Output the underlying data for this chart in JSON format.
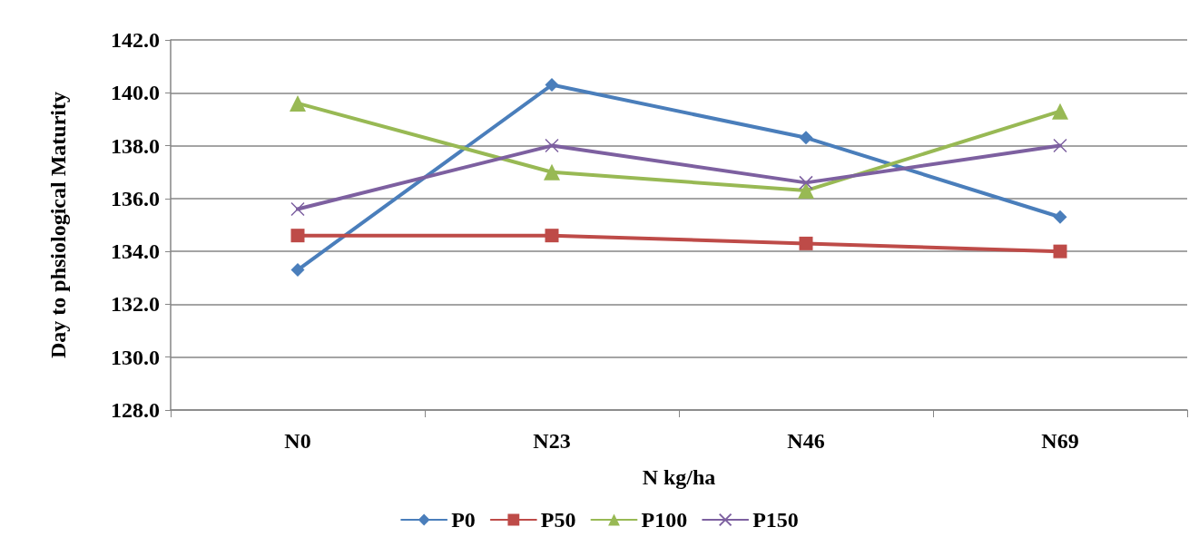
{
  "chart_data": {
    "type": "line",
    "xlabel": "N kg/ha",
    "ylabel": "Day to phsiological Maturity",
    "categories": [
      "N0",
      "N23",
      "N46",
      "N69"
    ],
    "series": [
      {
        "name": "P0",
        "color": "#4a7ebb",
        "marker": "diamond",
        "values": [
          133.3,
          140.3,
          138.3,
          135.3
        ]
      },
      {
        "name": "P50",
        "color": "#be4b48",
        "marker": "square",
        "values": [
          134.6,
          134.6,
          134.3,
          134.0
        ]
      },
      {
        "name": "P100",
        "color": "#98b954",
        "marker": "triangle",
        "values": [
          139.6,
          137.0,
          136.3,
          139.3
        ]
      },
      {
        "name": "P150",
        "color": "#7d60a0",
        "marker": "cross",
        "values": [
          135.6,
          138.0,
          136.6,
          138.0
        ]
      }
    ],
    "ylim": [
      128,
      142
    ],
    "yticks": [
      {
        "value": 128,
        "label": "128.0"
      },
      {
        "value": 130,
        "label": "130.0"
      },
      {
        "value": 132,
        "label": "132.0"
      },
      {
        "value": 134,
        "label": "134.0"
      },
      {
        "value": 136,
        "label": "136.0"
      },
      {
        "value": 138,
        "label": "138.0"
      },
      {
        "value": 140,
        "label": "140.0"
      },
      {
        "value": 142,
        "label": "142.0"
      }
    ],
    "grid": "y",
    "legend": "bottom",
    "line_style": "solid"
  }
}
